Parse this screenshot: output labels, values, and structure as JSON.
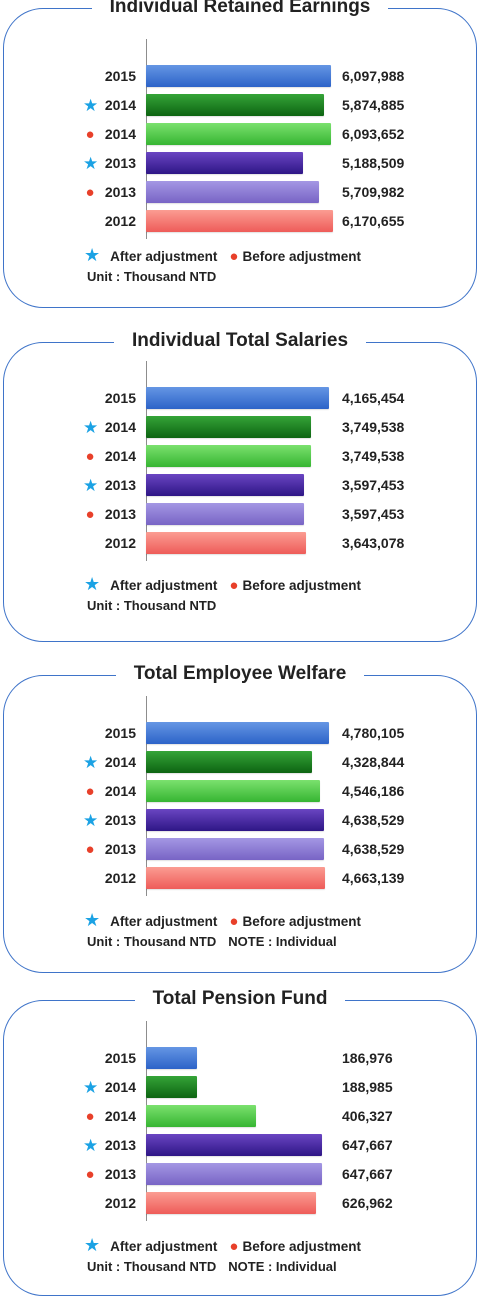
{
  "symbols": {
    "after": "★",
    "before": "●"
  },
  "colors": {
    "border": "#3f74c9",
    "after_marker": "#1ba2e4",
    "before_marker": "#e8402a",
    "series_2015": "#3f74d2",
    "series_2014_after": "#1f8323",
    "series_2014_before": "#55cc49",
    "series_2013_after": "#432aa5",
    "series_2013_before": "#8c7dd6",
    "series_2012": "#f47471"
  },
  "chart_data": [
    {
      "type": "bar",
      "orientation": "horizontal",
      "title": "Individual Retained Earnings",
      "categories": [
        "2015",
        "2014",
        "2014",
        "2013",
        "2013",
        "2012"
      ],
      "markers": [
        "",
        "after",
        "before",
        "after",
        "before",
        ""
      ],
      "values": [
        6097988,
        5874885,
        6093652,
        5188509,
        5709982,
        6170655
      ],
      "value_labels": [
        "6,097,988",
        "5,874,885",
        "6,093,652",
        "5,188,509",
        "5,709,982",
        "6,170,655"
      ],
      "xlim": [
        0,
        6170655
      ],
      "legend": {
        "after": "After adjustment",
        "before": "Before adjustment"
      },
      "unit": "Unit : Thousand NTD",
      "note": ""
    },
    {
      "type": "bar",
      "orientation": "horizontal",
      "title": "Individual Total Salaries",
      "categories": [
        "2015",
        "2014",
        "2014",
        "2013",
        "2013",
        "2012"
      ],
      "markers": [
        "",
        "after",
        "before",
        "after",
        "before",
        ""
      ],
      "values": [
        4165454,
        3749538,
        3749538,
        3597453,
        3597453,
        3643078
      ],
      "value_labels": [
        "4,165,454",
        "3,749,538",
        "3,749,538",
        "3,597,453",
        "3,597,453",
        "3,643,078"
      ],
      "xlim": [
        0,
        4165454
      ],
      "legend": {
        "after": "After adjustment",
        "before": "Before adjustment"
      },
      "unit": "Unit : Thousand NTD",
      "note": ""
    },
    {
      "type": "bar",
      "orientation": "horizontal",
      "title": "Total Employee Welfare",
      "categories": [
        "2015",
        "2014",
        "2014",
        "2013",
        "2013",
        "2012"
      ],
      "markers": [
        "",
        "after",
        "before",
        "after",
        "before",
        ""
      ],
      "values": [
        4780105,
        4328844,
        4546186,
        4638529,
        4638529,
        4663139
      ],
      "value_labels": [
        "4,780,105",
        "4,328,844",
        "4,546,186",
        "4,638,529",
        "4,638,529",
        "4,663,139"
      ],
      "xlim": [
        0,
        4780105
      ],
      "legend": {
        "after": "After adjustment",
        "before": "Before adjustment"
      },
      "unit": "Unit : Thousand NTD",
      "note": "NOTE : Individual"
    },
    {
      "type": "bar",
      "orientation": "horizontal",
      "title": "Total Pension Fund",
      "categories": [
        "2015",
        "2014",
        "2014",
        "2013",
        "2013",
        "2012"
      ],
      "markers": [
        "",
        "after",
        "before",
        "after",
        "before",
        ""
      ],
      "values": [
        186976,
        188985,
        406327,
        647667,
        647667,
        626962
      ],
      "value_labels": [
        "186,976",
        "188,985",
        "406,327",
        "647,667",
        "647,667",
        "626,962"
      ],
      "xlim": [
        0,
        647667
      ],
      "legend": {
        "after": "After adjustment",
        "before": "Before adjustment"
      },
      "unit": "Unit : Thousand NTD",
      "note": "NOTE : Individual"
    }
  ]
}
